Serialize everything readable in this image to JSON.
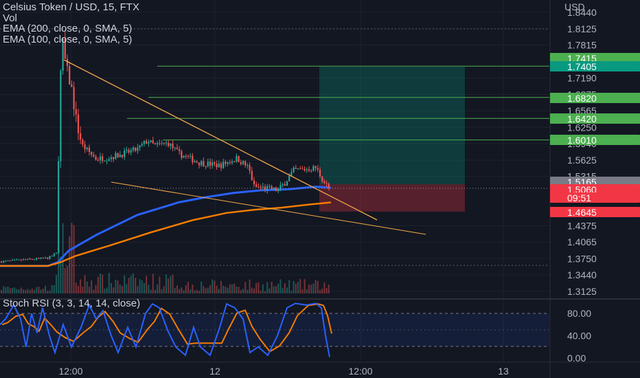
{
  "legend": {
    "title": "Celsius Token / USD, 15, FTX",
    "vol": "Vol",
    "ema200": "EMA (200, close, 0, SMA, 5)",
    "ema100": "EMA (100, close, 0, SMA, 5)"
  },
  "stoch_legend": "Stoch RSI (3, 3, 14, 14, close)",
  "colors": {
    "background": "#131722",
    "up": "#26a69a",
    "down": "#ef5350",
    "ema200": "#2962ff",
    "ema100": "#f57c00",
    "trendline": "#f7a94a",
    "target_green": "#2e7d32",
    "stoch_k": "#2962ff",
    "stoch_d": "#f57c00"
  },
  "chart_data": {
    "type": "candlestick",
    "title": "Celsius Token / USD, 15, FTX",
    "price_axis": {
      "unit": "USD",
      "ticks": [
        "1.8440",
        "1.8125",
        "1.7815",
        "1.7190",
        "1.6875",
        "1.6565",
        "1.6250",
        "1.5940",
        "1.5625",
        "1.5315",
        "1.4375",
        "1.4065",
        "1.3750",
        "1.3440",
        "1.3125"
      ],
      "range": [
        1.305,
        1.848
      ]
    },
    "time_axis": {
      "ticks": [
        "12:00",
        "12",
        "12:00",
        "13"
      ]
    },
    "price_tags": [
      {
        "value": "1.7415",
        "style": "green"
      },
      {
        "value": "1.7405",
        "style": "teal"
      },
      {
        "value": "1.6820",
        "style": "green"
      },
      {
        "value": "1.6420",
        "style": "green"
      },
      {
        "value": "1.6010",
        "style": "green"
      },
      {
        "value": "1.5165",
        "style": "grey"
      },
      {
        "value": "1.5060",
        "style": "red"
      },
      {
        "value": "09:51",
        "style": "red"
      },
      {
        "value": "1.4645",
        "style": "red"
      }
    ],
    "horizontal_levels": [
      1.7415,
      1.682,
      1.642,
      1.601
    ],
    "position": {
      "entry": 1.5165,
      "target": 1.7405,
      "stop": 1.4645
    },
    "stoch_rsi": {
      "ticks": [
        "80.00",
        "40.00",
        "0.00"
      ],
      "levels": [
        80,
        20
      ],
      "range": [
        0,
        100
      ]
    }
  }
}
